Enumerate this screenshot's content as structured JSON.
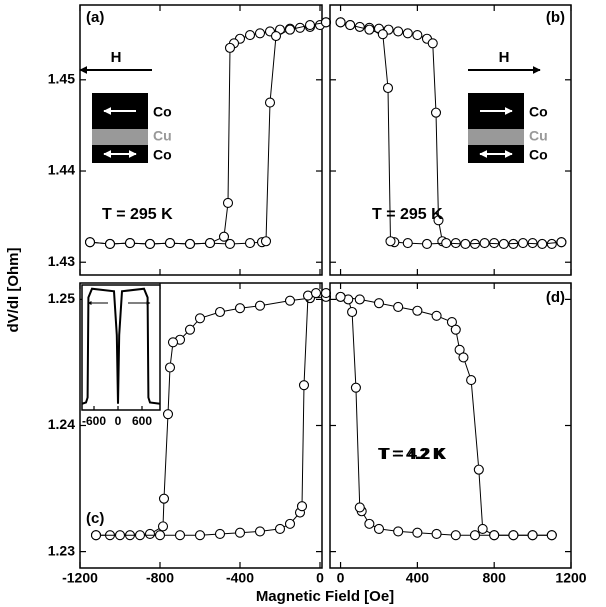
{
  "xlabel": "Magnetic Field [Oe]",
  "ylabel": "dV/dI [Ohm]",
  "chart_data": [
    {
      "type": "line",
      "panel": "(a)",
      "annotation": "T = 295 K",
      "markers": true,
      "marker_color": "#000000",
      "marker_fill": "#ffffff",
      "xlim": [
        -1200,
        10
      ],
      "ylim": [
        1.4286,
        1.4582
      ],
      "xticks": [
        -1200,
        -800,
        -400,
        0
      ],
      "yticks": [
        1.43,
        1.44,
        1.45
      ],
      "show_xticklabels": false,
      "show_yticklabels": true,
      "inset_diagram": {
        "field": "H",
        "field_direction": "left",
        "top": "Co",
        "middle": "Cu",
        "bottom": "Co"
      },
      "series": [
        {
          "x": [
            30,
            0,
            -50,
            -100,
            -150,
            -200,
            -250,
            -300,
            -350,
            -400,
            -430,
            -450,
            -460,
            -480,
            -550,
            -650,
            -750,
            -850,
            -950,
            -1050,
            -1150
          ],
          "values": [
            1.4563,
            1.456,
            1.4558,
            1.4557,
            1.4556,
            1.4555,
            1.4553,
            1.4551,
            1.4549,
            1.4545,
            1.454,
            1.4535,
            1.4365,
            1.4328,
            1.4321,
            1.432,
            1.4321,
            1.432,
            1.4321,
            1.432,
            1.4322
          ]
        },
        {
          "x": [
            -1150,
            -1050,
            -950,
            -850,
            -750,
            -650,
            -550,
            -450,
            -350,
            -290,
            -270,
            -250,
            -220,
            -150,
            -50,
            30
          ],
          "values": [
            1.4322,
            1.432,
            1.4321,
            1.432,
            1.4321,
            1.432,
            1.4321,
            1.432,
            1.4321,
            1.4322,
            1.4323,
            1.4475,
            1.4548,
            1.4555,
            1.456,
            1.4563
          ]
        }
      ]
    },
    {
      "type": "line",
      "panel": "(b)",
      "annotation": "T = 295 K",
      "markers": true,
      "marker_color": "#000000",
      "marker_fill": "#ffffff",
      "xlim": [
        -55,
        1200
      ],
      "ylim": [
        1.4286,
        1.4582
      ],
      "xticks": [
        0,
        400,
        800,
        1200
      ],
      "yticks": [
        1.43,
        1.44,
        1.45
      ],
      "show_xticklabels": false,
      "show_yticklabels": false,
      "inset_diagram": {
        "field": "H",
        "field_direction": "right",
        "top": "Co",
        "middle": "Cu",
        "bottom": "Co"
      },
      "series": [
        {
          "x": [
            0,
            50,
            100,
            150,
            200,
            250,
            300,
            350,
            400,
            450,
            480,
            497,
            510,
            530,
            600,
            700,
            800,
            900,
            1000,
            1100,
            1150
          ],
          "values": [
            1.4563,
            1.456,
            1.4558,
            1.4557,
            1.4556,
            1.4555,
            1.4553,
            1.4551,
            1.4549,
            1.4545,
            1.454,
            1.4464,
            1.4346,
            1.4323,
            1.4321,
            1.432,
            1.4321,
            1.432,
            1.4321,
            1.432,
            1.4322
          ]
        },
        {
          "x": [
            1150,
            1050,
            950,
            850,
            750,
            650,
            550,
            450,
            350,
            280,
            260,
            247,
            220,
            150,
            50,
            0
          ],
          "values": [
            1.4322,
            1.432,
            1.4321,
            1.432,
            1.4321,
            1.432,
            1.4321,
            1.432,
            1.4321,
            1.4322,
            1.4323,
            1.4491,
            1.455,
            1.4555,
            1.456,
            1.4563
          ]
        }
      ]
    },
    {
      "type": "line",
      "panel": "(c)",
      "annotation": "T = 4.2 K",
      "markers": true,
      "marker_color": "#000000",
      "marker_fill": "#ffffff",
      "xlim": [
        -1200,
        10
      ],
      "ylim": [
        1.2287,
        1.2513
      ],
      "xticks": [
        -1200,
        -800,
        -400,
        0
      ],
      "yticks": [
        1.23,
        1.24,
        1.25
      ],
      "show_xticklabels": true,
      "show_yticklabels": true,
      "series": [
        {
          "x": [
            30,
            -50,
            -150,
            -300,
            -400,
            -500,
            -600,
            -650,
            -700,
            -735,
            -750,
            -760,
            -780,
            -785,
            -850,
            -950,
            -1050,
            -1120
          ],
          "values": [
            1.2502,
            1.2501,
            1.2499,
            1.2495,
            1.2493,
            1.249,
            1.2485,
            1.2476,
            1.2468,
            1.2466,
            1.2446,
            1.2409,
            1.2342,
            1.232,
            1.2314,
            1.2313,
            1.2313,
            1.2313
          ]
        },
        {
          "x": [
            -1120,
            -1000,
            -900,
            -800,
            -700,
            -600,
            -500,
            -400,
            -300,
            -200,
            -150,
            -100,
            -90,
            -80,
            -60,
            -20,
            30
          ],
          "values": [
            1.2313,
            1.2313,
            1.2313,
            1.2313,
            1.2313,
            1.2313,
            1.2314,
            1.2315,
            1.2316,
            1.2318,
            1.2322,
            1.2331,
            1.2336,
            1.2432,
            1.2503,
            1.2505,
            1.2505
          ]
        }
      ]
    },
    {
      "type": "line",
      "panel": "(d)",
      "annotation": "T = 4.2 K",
      "markers": true,
      "marker_color": "#000000",
      "marker_fill": "#ffffff",
      "xlim": [
        -55,
        1200
      ],
      "ylim": [
        1.2287,
        1.2513
      ],
      "xticks": [
        0,
        400,
        800,
        1200
      ],
      "yticks": [
        1.23,
        1.24,
        1.25
      ],
      "show_xticklabels": true,
      "show_yticklabels": false,
      "series": [
        {
          "x": [
            0,
            100,
            200,
            300,
            400,
            500,
            580,
            600,
            620,
            640,
            680,
            720,
            740,
            800,
            900,
            1000,
            1100
          ],
          "values": [
            1.2502,
            1.25,
            1.2497,
            1.2494,
            1.2491,
            1.2487,
            1.2482,
            1.2476,
            1.246,
            1.2454,
            1.2436,
            1.2365,
            1.2318,
            1.2313,
            1.2313,
            1.2313,
            1.2313
          ]
        },
        {
          "x": [
            1100,
            1000,
            900,
            800,
            700,
            600,
            500,
            400,
            300,
            200,
            150,
            110,
            100,
            80,
            60,
            40,
            0
          ],
          "values": [
            1.2313,
            1.2313,
            1.2313,
            1.2313,
            1.2313,
            1.2313,
            1.2314,
            1.2315,
            1.2316,
            1.2318,
            1.2322,
            1.2332,
            1.2335,
            1.243,
            1.249,
            1.25,
            1.2502
          ]
        }
      ]
    },
    {
      "type": "line",
      "markers": false,
      "color": "#000000",
      "xlim": [
        -900,
        1050
      ],
      "ylim": [
        0,
        1
      ],
      "xticks": [
        -600,
        0,
        600
      ],
      "show_xticklabels": true,
      "series": [
        {
          "x": [
            -900,
            -800,
            -760,
            -740,
            -650,
            -100,
            -30,
            0,
            30,
            100,
            650,
            740,
            760,
            800,
            1050
          ],
          "values": [
            0.05,
            0.06,
            0.1,
            0.9,
            0.97,
            0.95,
            0.6,
            0.05,
            0.6,
            0.95,
            0.97,
            0.9,
            0.1,
            0.06,
            0.05
          ]
        }
      ]
    }
  ]
}
